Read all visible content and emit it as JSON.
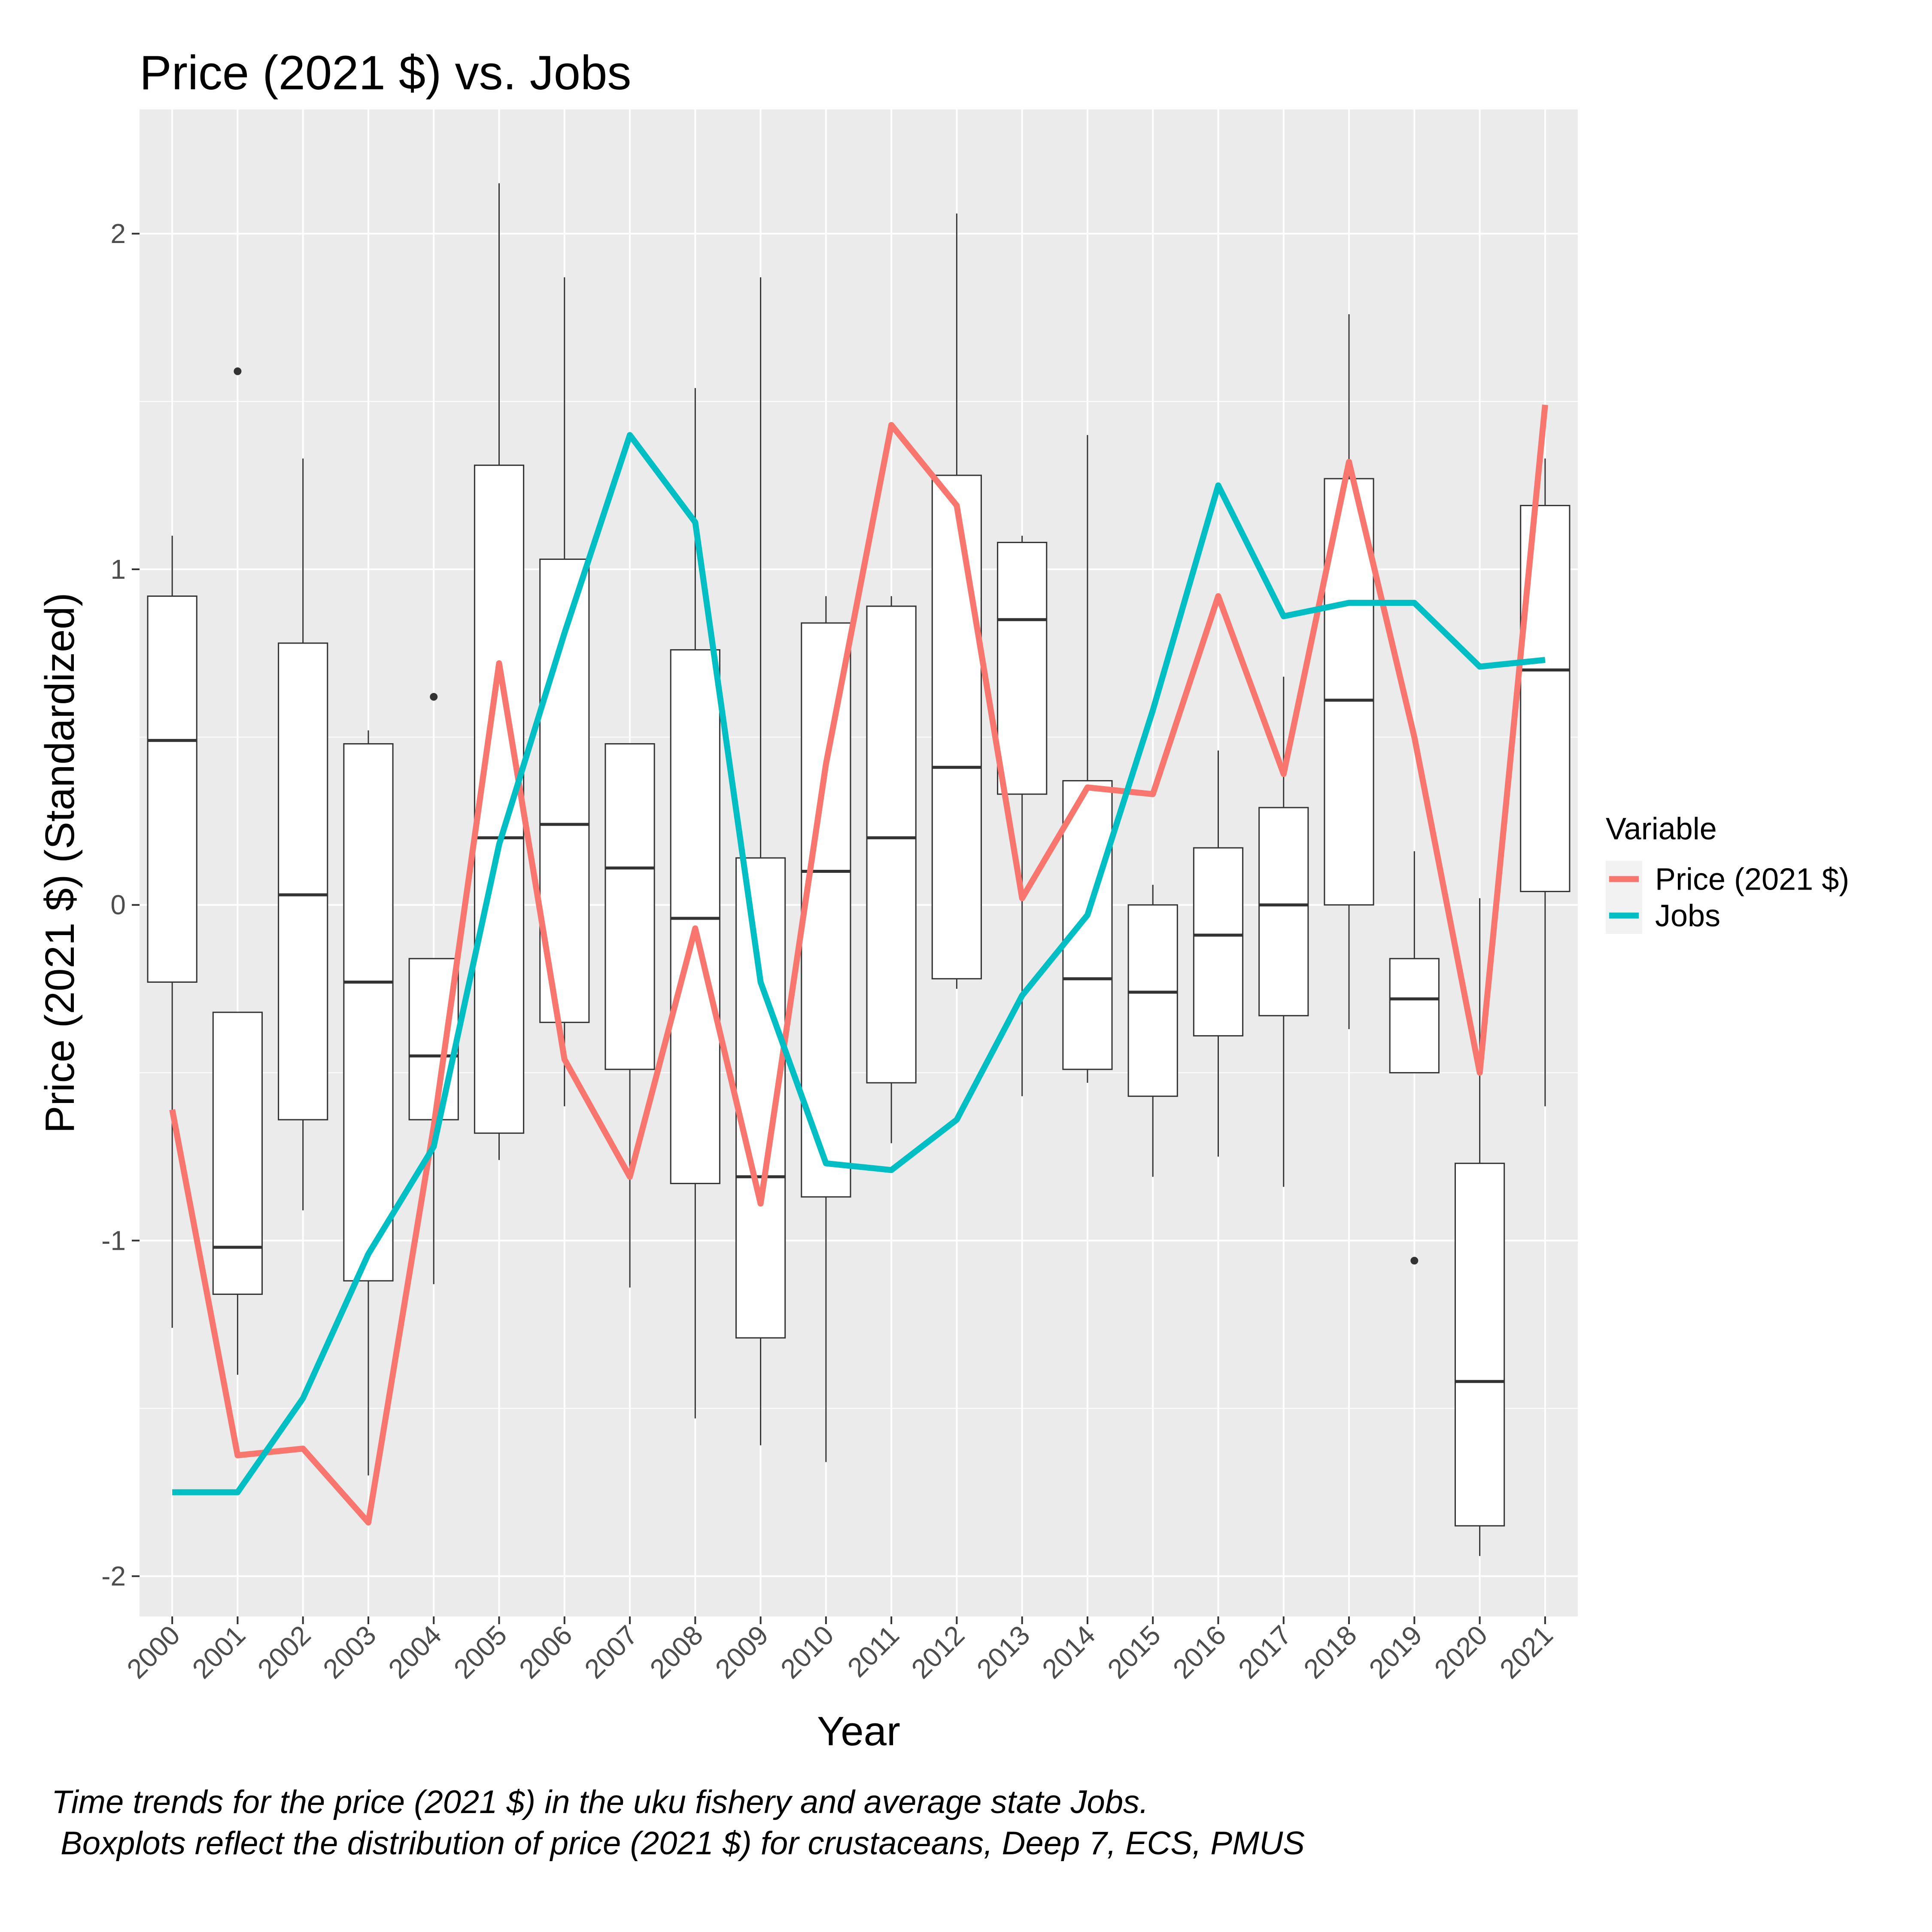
{
  "chart_data": {
    "type": "boxplot+line",
    "title": "Price (2021 $) vs. Jobs",
    "xlabel": "Year",
    "ylabel": "Price (2021 $) (Standardized)",
    "ylim": [
      -2.12,
      2.37
    ],
    "yticks": [
      -2,
      -1,
      0,
      1,
      2
    ],
    "grid": true,
    "categories": [
      "2000",
      "2001",
      "2002",
      "2003",
      "2004",
      "2005",
      "2006",
      "2007",
      "2008",
      "2009",
      "2010",
      "2011",
      "2012",
      "2013",
      "2014",
      "2015",
      "2016",
      "2017",
      "2018",
      "2019",
      "2020",
      "2021"
    ],
    "boxes": [
      {
        "year": "2000",
        "min": -1.26,
        "q1": -0.23,
        "median": 0.49,
        "q3": 0.92,
        "max": 1.1,
        "outliers": []
      },
      {
        "year": "2001",
        "min": -1.4,
        "q1": -1.16,
        "median": -1.02,
        "q3": -0.32,
        "max": -0.32,
        "outliers": [
          1.59
        ]
      },
      {
        "year": "2002",
        "min": -0.91,
        "q1": -0.64,
        "median": 0.03,
        "q3": 0.78,
        "max": 1.33,
        "outliers": []
      },
      {
        "year": "2003",
        "min": -1.7,
        "q1": -1.12,
        "median": -0.23,
        "q3": 0.48,
        "max": 0.52,
        "outliers": []
      },
      {
        "year": "2004",
        "min": -1.13,
        "q1": -0.64,
        "median": -0.45,
        "q3": -0.16,
        "max": -0.16,
        "outliers": [
          0.62
        ]
      },
      {
        "year": "2005",
        "min": -0.76,
        "q1": -0.68,
        "median": 0.2,
        "q3": 1.31,
        "max": 2.15,
        "outliers": []
      },
      {
        "year": "2006",
        "min": -0.6,
        "q1": -0.35,
        "median": 0.24,
        "q3": 1.03,
        "max": 1.87,
        "outliers": []
      },
      {
        "year": "2007",
        "min": -1.14,
        "q1": -0.49,
        "median": 0.11,
        "q3": 0.48,
        "max": 0.48,
        "outliers": []
      },
      {
        "year": "2008",
        "min": -1.53,
        "q1": -0.83,
        "median": -0.04,
        "q3": 0.76,
        "max": 1.54,
        "outliers": []
      },
      {
        "year": "2009",
        "min": -1.61,
        "q1": -1.29,
        "median": -0.81,
        "q3": 0.14,
        "max": 1.87,
        "outliers": []
      },
      {
        "year": "2010",
        "min": -1.66,
        "q1": -0.87,
        "median": 0.1,
        "q3": 0.84,
        "max": 0.92,
        "outliers": []
      },
      {
        "year": "2011",
        "min": -0.71,
        "q1": -0.53,
        "median": 0.2,
        "q3": 0.89,
        "max": 0.92,
        "outliers": []
      },
      {
        "year": "2012",
        "min": -0.25,
        "q1": -0.22,
        "median": 0.41,
        "q3": 1.28,
        "max": 2.06,
        "outliers": []
      },
      {
        "year": "2013",
        "min": -0.57,
        "q1": 0.33,
        "median": 0.85,
        "q3": 1.08,
        "max": 1.1,
        "outliers": []
      },
      {
        "year": "2014",
        "min": -0.53,
        "q1": -0.49,
        "median": -0.22,
        "q3": 0.37,
        "max": 1.4,
        "outliers": []
      },
      {
        "year": "2015",
        "min": -0.81,
        "q1": -0.57,
        "median": -0.26,
        "q3": 0.0,
        "max": 0.06,
        "outliers": []
      },
      {
        "year": "2016",
        "min": -0.75,
        "q1": -0.39,
        "median": -0.09,
        "q3": 0.17,
        "max": 0.46,
        "outliers": []
      },
      {
        "year": "2017",
        "min": -0.84,
        "q1": -0.33,
        "median": 0.0,
        "q3": 0.29,
        "max": 0.68,
        "outliers": []
      },
      {
        "year": "2018",
        "min": -0.37,
        "q1": 0.0,
        "median": 0.61,
        "q3": 1.27,
        "max": 1.76,
        "outliers": []
      },
      {
        "year": "2019",
        "min": -0.5,
        "q1": -0.5,
        "median": -0.28,
        "q3": -0.16,
        "max": 0.16,
        "outliers": [
          -1.06
        ]
      },
      {
        "year": "2020",
        "min": -1.94,
        "q1": -1.85,
        "median": -1.42,
        "q3": -0.77,
        "max": 0.02,
        "outliers": []
      },
      {
        "year": "2021",
        "min": -0.6,
        "q1": 0.04,
        "median": 0.7,
        "q3": 1.19,
        "max": 1.33,
        "outliers": []
      }
    ],
    "series": [
      {
        "name": "Price (2021 $)",
        "color": "#F8766D",
        "values": [
          -0.61,
          -1.64,
          -1.62,
          -1.84,
          -0.66,
          0.72,
          -0.46,
          -0.81,
          -0.07,
          -0.89,
          0.42,
          1.43,
          1.19,
          0.02,
          0.35,
          0.33,
          0.92,
          0.39,
          1.32,
          0.5,
          -0.5,
          1.49
        ]
      },
      {
        "name": "Jobs",
        "color": "#00BFC4",
        "values": [
          -1.75,
          -1.75,
          -1.47,
          -1.04,
          -0.72,
          0.18,
          0.81,
          1.4,
          1.14,
          -0.23,
          -0.77,
          -0.79,
          -0.64,
          -0.27,
          -0.03,
          0.58,
          1.25,
          0.86,
          0.9,
          0.9,
          0.71,
          0.73
        ]
      }
    ],
    "legend": {
      "title": "Variable",
      "position": "right"
    },
    "caption": [
      "Time trends for the price (2021 $) in the uku fishery and average state Jobs.",
      " Boxplots reflect the distribution of price (2021 $) for crustaceans, Deep 7, ECS, PMUS"
    ]
  }
}
